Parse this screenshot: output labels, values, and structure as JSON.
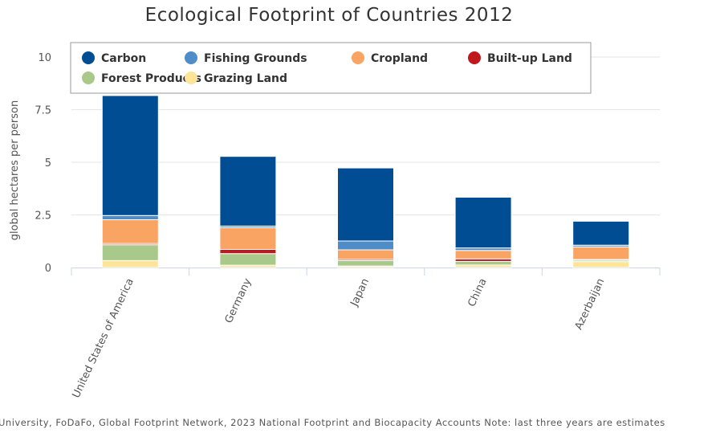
{
  "chart_data": {
    "type": "bar",
    "stacked": true,
    "title": "Ecological Footprint of Countries 2012",
    "ylabel": "global hectares per person",
    "xlabel": "",
    "ylim": [
      0,
      10
    ],
    "yticks": [
      0,
      2.5,
      5,
      7.5,
      10
    ],
    "ytick_labels": [
      "0",
      "2.5",
      "5",
      "7.5",
      "10"
    ],
    "grid": true,
    "legend_position": "top",
    "categories": [
      "United States of America",
      "Germany",
      "Japan",
      "China",
      "Azerbaijan"
    ],
    "series": [
      {
        "name": "Grazing Land",
        "color": "#fde499",
        "values": [
          0.33,
          0.11,
          0.07,
          0.12,
          0.28
        ]
      },
      {
        "name": "Forest Products",
        "color": "#a9c98a",
        "values": [
          0.75,
          0.55,
          0.26,
          0.17,
          0.07
        ]
      },
      {
        "name": "Built-up Land",
        "color": "#c0181d",
        "values": [
          0.06,
          0.2,
          0.06,
          0.12,
          0.03
        ]
      },
      {
        "name": "Cropland",
        "color": "#f9a463",
        "values": [
          1.13,
          1.03,
          0.45,
          0.4,
          0.6
        ]
      },
      {
        "name": "Fishing Grounds",
        "color": "#4e8dc9",
        "values": [
          0.2,
          0.08,
          0.42,
          0.12,
          0.08
        ]
      },
      {
        "name": "Carbon",
        "color": "#004d94",
        "values": [
          5.7,
          3.31,
          3.47,
          2.41,
          1.14
        ]
      }
    ],
    "legend_order": [
      "Carbon",
      "Fishing Grounds",
      "Cropland",
      "Built-up Land",
      "Forest Products",
      "Grazing Land"
    ]
  },
  "credits": "University, FoDaFo, Global Footprint Network, 2023 National Footprint and Biocapacity Accounts Note: last three years are estimates"
}
